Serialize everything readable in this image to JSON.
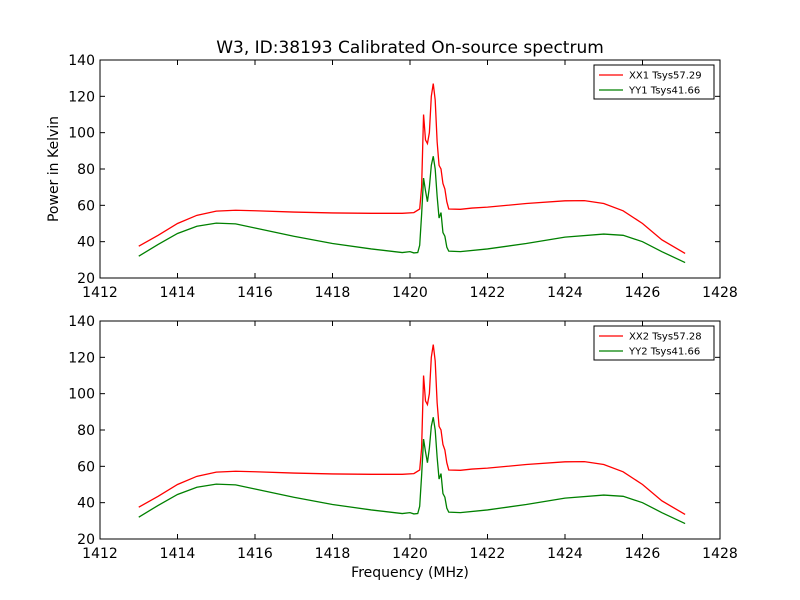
{
  "title": "W3, ID:38193 Calibrated On-source spectrum",
  "chart_data": [
    {
      "type": "line",
      "title": "W3, ID:38193 Calibrated On-source spectrum",
      "xlabel": "",
      "ylabel": "Power in Kelvin",
      "xlim": [
        1412,
        1428
      ],
      "ylim": [
        20,
        140
      ],
      "xticks": [
        "1412",
        "1414",
        "1416",
        "1418",
        "1420",
        "1422",
        "1424",
        "1426",
        "1428"
      ],
      "yticks": [
        "20",
        "40",
        "60",
        "80",
        "100",
        "120",
        "140"
      ],
      "grid": false,
      "legend_position": "top-right",
      "series": [
        {
          "name": "XX1 Tsys57.29",
          "color": "#ff0000",
          "points": [
            [
              1413.0,
              37.5
            ],
            [
              1413.5,
              43.5
            ],
            [
              1414.0,
              50.0
            ],
            [
              1414.5,
              54.5
            ],
            [
              1415.0,
              56.8
            ],
            [
              1415.5,
              57.3
            ],
            [
              1416.0,
              57.0
            ],
            [
              1417.0,
              56.3
            ],
            [
              1418.0,
              55.8
            ],
            [
              1419.0,
              55.6
            ],
            [
              1419.8,
              55.6
            ],
            [
              1420.1,
              56.0
            ],
            [
              1420.25,
              58.0
            ],
            [
              1420.3,
              70.0
            ],
            [
              1420.35,
              110.0
            ],
            [
              1420.4,
              96.0
            ],
            [
              1420.45,
              94.0
            ],
            [
              1420.5,
              100.0
            ],
            [
              1420.55,
              120.0
            ],
            [
              1420.6,
              127.0
            ],
            [
              1420.65,
              118.0
            ],
            [
              1420.7,
              95.0
            ],
            [
              1420.75,
              82.0
            ],
            [
              1420.8,
              80.0
            ],
            [
              1420.85,
              72.0
            ],
            [
              1420.9,
              69.0
            ],
            [
              1420.95,
              62.0
            ],
            [
              1421.0,
              58.0
            ],
            [
              1421.3,
              57.8
            ],
            [
              1421.6,
              58.5
            ],
            [
              1422.0,
              59.0
            ],
            [
              1423.0,
              61.0
            ],
            [
              1424.0,
              62.5
            ],
            [
              1424.5,
              62.6
            ],
            [
              1425.0,
              61.0
            ],
            [
              1425.5,
              57.0
            ],
            [
              1426.0,
              50.0
            ],
            [
              1426.5,
              41.0
            ],
            [
              1427.1,
              33.5
            ]
          ]
        },
        {
          "name": "YY1 Tsys41.66",
          "color": "#008000",
          "points": [
            [
              1413.0,
              32.0
            ],
            [
              1413.5,
              38.5
            ],
            [
              1414.0,
              44.5
            ],
            [
              1414.5,
              48.5
            ],
            [
              1415.0,
              50.2
            ],
            [
              1415.5,
              49.8
            ],
            [
              1416.0,
              47.5
            ],
            [
              1417.0,
              43.0
            ],
            [
              1418.0,
              39.0
            ],
            [
              1419.0,
              36.0
            ],
            [
              1419.8,
              34.0
            ],
            [
              1420.0,
              34.5
            ],
            [
              1420.1,
              33.8
            ],
            [
              1420.2,
              34.0
            ],
            [
              1420.25,
              38.0
            ],
            [
              1420.3,
              55.0
            ],
            [
              1420.35,
              75.0
            ],
            [
              1420.4,
              68.0
            ],
            [
              1420.45,
              62.0
            ],
            [
              1420.5,
              70.0
            ],
            [
              1420.55,
              82.0
            ],
            [
              1420.6,
              87.0
            ],
            [
              1420.65,
              80.0
            ],
            [
              1420.7,
              65.0
            ],
            [
              1420.75,
              53.0
            ],
            [
              1420.8,
              56.0
            ],
            [
              1420.85,
              45.0
            ],
            [
              1420.9,
              43.0
            ],
            [
              1420.95,
              37.0
            ],
            [
              1421.0,
              34.8
            ],
            [
              1421.3,
              34.5
            ],
            [
              1422.0,
              36.0
            ],
            [
              1423.0,
              39.0
            ],
            [
              1424.0,
              42.5
            ],
            [
              1425.0,
              44.2
            ],
            [
              1425.5,
              43.5
            ],
            [
              1426.0,
              40.0
            ],
            [
              1426.5,
              34.5
            ],
            [
              1427.1,
              28.5
            ]
          ]
        }
      ]
    },
    {
      "type": "line",
      "title": "",
      "xlabel": "Frequency (MHz)",
      "ylabel": "",
      "xlim": [
        1412,
        1428
      ],
      "ylim": [
        20,
        140
      ],
      "xticks": [
        "1412",
        "1414",
        "1416",
        "1418",
        "1420",
        "1422",
        "1424",
        "1426",
        "1428"
      ],
      "yticks": [
        "20",
        "40",
        "60",
        "80",
        "100",
        "120",
        "140"
      ],
      "grid": false,
      "legend_position": "top-right",
      "series": [
        {
          "name": "XX2 Tsys57.28",
          "color": "#ff0000",
          "points": [
            [
              1413.0,
              37.5
            ],
            [
              1413.5,
              43.5
            ],
            [
              1414.0,
              50.0
            ],
            [
              1414.5,
              54.5
            ],
            [
              1415.0,
              56.8
            ],
            [
              1415.5,
              57.3
            ],
            [
              1416.0,
              57.0
            ],
            [
              1417.0,
              56.3
            ],
            [
              1418.0,
              55.8
            ],
            [
              1419.0,
              55.6
            ],
            [
              1419.8,
              55.6
            ],
            [
              1420.1,
              56.0
            ],
            [
              1420.25,
              58.0
            ],
            [
              1420.3,
              70.0
            ],
            [
              1420.35,
              110.0
            ],
            [
              1420.4,
              96.0
            ],
            [
              1420.45,
              94.0
            ],
            [
              1420.5,
              100.0
            ],
            [
              1420.55,
              120.0
            ],
            [
              1420.6,
              127.0
            ],
            [
              1420.65,
              118.0
            ],
            [
              1420.7,
              95.0
            ],
            [
              1420.75,
              82.0
            ],
            [
              1420.8,
              80.0
            ],
            [
              1420.85,
              72.0
            ],
            [
              1420.9,
              69.0
            ],
            [
              1420.95,
              62.0
            ],
            [
              1421.0,
              58.0
            ],
            [
              1421.3,
              57.8
            ],
            [
              1421.6,
              58.5
            ],
            [
              1422.0,
              59.0
            ],
            [
              1423.0,
              61.0
            ],
            [
              1424.0,
              62.5
            ],
            [
              1424.5,
              62.6
            ],
            [
              1425.0,
              61.0
            ],
            [
              1425.5,
              57.0
            ],
            [
              1426.0,
              50.0
            ],
            [
              1426.5,
              41.0
            ],
            [
              1427.1,
              33.5
            ]
          ]
        },
        {
          "name": "YY2 Tsys41.66",
          "color": "#008000",
          "points": [
            [
              1413.0,
              32.0
            ],
            [
              1413.5,
              38.5
            ],
            [
              1414.0,
              44.5
            ],
            [
              1414.5,
              48.5
            ],
            [
              1415.0,
              50.2
            ],
            [
              1415.5,
              49.8
            ],
            [
              1416.0,
              47.5
            ],
            [
              1417.0,
              43.0
            ],
            [
              1418.0,
              39.0
            ],
            [
              1419.0,
              36.0
            ],
            [
              1419.8,
              34.0
            ],
            [
              1420.0,
              34.5
            ],
            [
              1420.1,
              33.8
            ],
            [
              1420.2,
              34.0
            ],
            [
              1420.25,
              38.0
            ],
            [
              1420.3,
              55.0
            ],
            [
              1420.35,
              75.0
            ],
            [
              1420.4,
              68.0
            ],
            [
              1420.45,
              62.0
            ],
            [
              1420.5,
              70.0
            ],
            [
              1420.55,
              82.0
            ],
            [
              1420.6,
              87.0
            ],
            [
              1420.65,
              80.0
            ],
            [
              1420.7,
              65.0
            ],
            [
              1420.75,
              53.0
            ],
            [
              1420.8,
              56.0
            ],
            [
              1420.85,
              45.0
            ],
            [
              1420.9,
              43.0
            ],
            [
              1420.95,
              37.0
            ],
            [
              1421.0,
              34.8
            ],
            [
              1421.3,
              34.5
            ],
            [
              1422.0,
              36.0
            ],
            [
              1423.0,
              39.0
            ],
            [
              1424.0,
              42.5
            ],
            [
              1425.0,
              44.2
            ],
            [
              1425.5,
              43.5
            ],
            [
              1426.0,
              40.0
            ],
            [
              1426.5,
              34.5
            ],
            [
              1427.1,
              28.5
            ]
          ]
        }
      ]
    }
  ]
}
